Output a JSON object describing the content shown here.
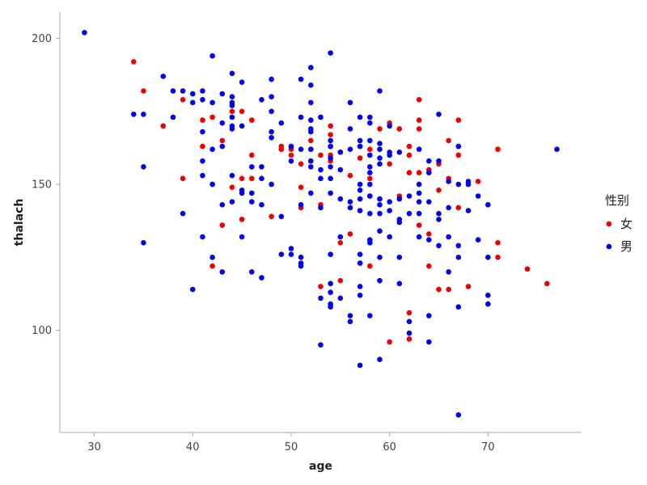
{
  "chart_data": {
    "type": "scatter",
    "title": "",
    "xlabel": "age",
    "ylabel": "thalach",
    "xlim": [
      26.5,
      79.5
    ],
    "ylim": [
      65,
      209
    ],
    "xticks": [
      30,
      40,
      50,
      60,
      70
    ],
    "yticks": [
      100,
      150,
      200
    ],
    "grid": false,
    "legend": {
      "title": "性别",
      "placement": "right"
    },
    "series": [
      {
        "name": "女",
        "color": "#ee0000",
        "points": [
          [
            34,
            192
          ],
          [
            35,
            182
          ],
          [
            37,
            170
          ],
          [
            39,
            179
          ],
          [
            39,
            152
          ],
          [
            41,
            172
          ],
          [
            41,
            163
          ],
          [
            42,
            173
          ],
          [
            42,
            122
          ],
          [
            43,
            165
          ],
          [
            43,
            136
          ],
          [
            44,
            175
          ],
          [
            44,
            149
          ],
          [
            45,
            175
          ],
          [
            45,
            152
          ],
          [
            45,
            138
          ],
          [
            46,
            160
          ],
          [
            46,
            172
          ],
          [
            46,
            152
          ],
          [
            48,
            139
          ],
          [
            49,
            163
          ],
          [
            49,
            162
          ],
          [
            50,
            162
          ],
          [
            50,
            160
          ],
          [
            51,
            157
          ],
          [
            51,
            149
          ],
          [
            51,
            142
          ],
          [
            52,
            165
          ],
          [
            52,
            162
          ],
          [
            52,
            158
          ],
          [
            53,
            160
          ],
          [
            53,
            143
          ],
          [
            53,
            115
          ],
          [
            54,
            170
          ],
          [
            54,
            167
          ],
          [
            54,
            163
          ],
          [
            54,
            160
          ],
          [
            54,
            158
          ],
          [
            55,
            161
          ],
          [
            55,
            130
          ],
          [
            55,
            117
          ],
          [
            56,
            153
          ],
          [
            56,
            133
          ],
          [
            57,
            159
          ],
          [
            57,
            163
          ],
          [
            58,
            162
          ],
          [
            58,
            152
          ],
          [
            58,
            146
          ],
          [
            58,
            122
          ],
          [
            59,
            169
          ],
          [
            60,
            171
          ],
          [
            60,
            157
          ],
          [
            60,
            96
          ],
          [
            61,
            169
          ],
          [
            61,
            146
          ],
          [
            62,
            163
          ],
          [
            62,
            160
          ],
          [
            62,
            154
          ],
          [
            62,
            106
          ],
          [
            62,
            97
          ],
          [
            63,
            179
          ],
          [
            63,
            172
          ],
          [
            63,
            169
          ],
          [
            63,
            154
          ],
          [
            63,
            136
          ],
          [
            64,
            155
          ],
          [
            64,
            133
          ],
          [
            64,
            122
          ],
          [
            65,
            157
          ],
          [
            65,
            148
          ],
          [
            65,
            114
          ],
          [
            66,
            165
          ],
          [
            66,
            152
          ],
          [
            66,
            114
          ],
          [
            67,
            172
          ],
          [
            67,
            160
          ],
          [
            67,
            142
          ],
          [
            68,
            115
          ],
          [
            69,
            151
          ],
          [
            71,
            162
          ],
          [
            71,
            130
          ],
          [
            71,
            125
          ],
          [
            74,
            121
          ],
          [
            76,
            116
          ]
        ]
      },
      {
        "name": "男",
        "color": "#0000ee",
        "points": [
          [
            29,
            202
          ],
          [
            34,
            174
          ],
          [
            35,
            174
          ],
          [
            35,
            156
          ],
          [
            35,
            130
          ],
          [
            37,
            187
          ],
          [
            38,
            182
          ],
          [
            38,
            173
          ],
          [
            39,
            182
          ],
          [
            39,
            140
          ],
          [
            40,
            181
          ],
          [
            40,
            178
          ],
          [
            40,
            114
          ],
          [
            41,
            182
          ],
          [
            41,
            179
          ],
          [
            41,
            168
          ],
          [
            41,
            158
          ],
          [
            41,
            153
          ],
          [
            41,
            132
          ],
          [
            42,
            194
          ],
          [
            42,
            178
          ],
          [
            42,
            162
          ],
          [
            42,
            150
          ],
          [
            42,
            125
          ],
          [
            43,
            181
          ],
          [
            43,
            171
          ],
          [
            43,
            163
          ],
          [
            43,
            143
          ],
          [
            43,
            120
          ],
          [
            44,
            188
          ],
          [
            44,
            180
          ],
          [
            44,
            178
          ],
          [
            44,
            177
          ],
          [
            44,
            173
          ],
          [
            44,
            170
          ],
          [
            44,
            169
          ],
          [
            44,
            153
          ],
          [
            44,
            144
          ],
          [
            45,
            185
          ],
          [
            45,
            170
          ],
          [
            45,
            148
          ],
          [
            45,
            147
          ],
          [
            45,
            132
          ],
          [
            46,
            156
          ],
          [
            46,
            147
          ],
          [
            46,
            144
          ],
          [
            46,
            120
          ],
          [
            47,
            179
          ],
          [
            47,
            156
          ],
          [
            47,
            152
          ],
          [
            47,
            143
          ],
          [
            47,
            118
          ],
          [
            48,
            186
          ],
          [
            48,
            180
          ],
          [
            48,
            175
          ],
          [
            48,
            168
          ],
          [
            48,
            166
          ],
          [
            48,
            150
          ],
          [
            49,
            171
          ],
          [
            49,
            139
          ],
          [
            49,
            126
          ],
          [
            50,
            163
          ],
          [
            50,
            158
          ],
          [
            50,
            128
          ],
          [
            50,
            126
          ],
          [
            51,
            186
          ],
          [
            51,
            173
          ],
          [
            51,
            162
          ],
          [
            51,
            143
          ],
          [
            51,
            125
          ],
          [
            51,
            123
          ],
          [
            51,
            122
          ],
          [
            52,
            190
          ],
          [
            52,
            184
          ],
          [
            52,
            178
          ],
          [
            52,
            172
          ],
          [
            52,
            169
          ],
          [
            52,
            168
          ],
          [
            52,
            162
          ],
          [
            52,
            158
          ],
          [
            52,
            156
          ],
          [
            52,
            147
          ],
          [
            53,
            173
          ],
          [
            53,
            155
          ],
          [
            53,
            152
          ],
          [
            53,
            142
          ],
          [
            53,
            111
          ],
          [
            53,
            95
          ],
          [
            54,
            195
          ],
          [
            54,
            165
          ],
          [
            54,
            163
          ],
          [
            54,
            159
          ],
          [
            54,
            156
          ],
          [
            54,
            152
          ],
          [
            54,
            147
          ],
          [
            54,
            126
          ],
          [
            54,
            116
          ],
          [
            54,
            113
          ],
          [
            54,
            109
          ],
          [
            54,
            108
          ],
          [
            55,
            161
          ],
          [
            55,
            155
          ],
          [
            55,
            145
          ],
          [
            55,
            132
          ],
          [
            55,
            111
          ],
          [
            56,
            178
          ],
          [
            56,
            169
          ],
          [
            56,
            162
          ],
          [
            56,
            144
          ],
          [
            56,
            142
          ],
          [
            56,
            105
          ],
          [
            56,
            103
          ],
          [
            57,
            173
          ],
          [
            57,
            165
          ],
          [
            57,
            163
          ],
          [
            57,
            150
          ],
          [
            57,
            148
          ],
          [
            57,
            145
          ],
          [
            57,
            141
          ],
          [
            57,
            126
          ],
          [
            57,
            123
          ],
          [
            57,
            115
          ],
          [
            57,
            112
          ],
          [
            57,
            88
          ],
          [
            58,
            173
          ],
          [
            58,
            171
          ],
          [
            58,
            165
          ],
          [
            58,
            160
          ],
          [
            58,
            156
          ],
          [
            58,
            154
          ],
          [
            58,
            150
          ],
          [
            58,
            146
          ],
          [
            58,
            140
          ],
          [
            58,
            131
          ],
          [
            58,
            130
          ],
          [
            58,
            105
          ],
          [
            59,
            182
          ],
          [
            59,
            164
          ],
          [
            59,
            162
          ],
          [
            59,
            159
          ],
          [
            59,
            157
          ],
          [
            59,
            145
          ],
          [
            59,
            143
          ],
          [
            59,
            140
          ],
          [
            59,
            134
          ],
          [
            59,
            125
          ],
          [
            59,
            117
          ],
          [
            59,
            90
          ],
          [
            60,
            170
          ],
          [
            60,
            161
          ],
          [
            60,
            160
          ],
          [
            60,
            144
          ],
          [
            60,
            141
          ],
          [
            60,
            132
          ],
          [
            61,
            161
          ],
          [
            61,
            145
          ],
          [
            61,
            138
          ],
          [
            61,
            137
          ],
          [
            61,
            125
          ],
          [
            61,
            116
          ],
          [
            62,
            146
          ],
          [
            62,
            140
          ],
          [
            62,
            103
          ],
          [
            62,
            99
          ],
          [
            63,
            162
          ],
          [
            63,
            150
          ],
          [
            63,
            147
          ],
          [
            63,
            144
          ],
          [
            63,
            140
          ],
          [
            63,
            132
          ],
          [
            64,
            158
          ],
          [
            64,
            154
          ],
          [
            64,
            144
          ],
          [
            64,
            131
          ],
          [
            64,
            105
          ],
          [
            64,
            96
          ],
          [
            65,
            174
          ],
          [
            65,
            158
          ],
          [
            65,
            140
          ],
          [
            65,
            138
          ],
          [
            65,
            129
          ],
          [
            66,
            151
          ],
          [
            66,
            142
          ],
          [
            66,
            132
          ],
          [
            66,
            120
          ],
          [
            67,
            163
          ],
          [
            67,
            150
          ],
          [
            67,
            129
          ],
          [
            67,
            125
          ],
          [
            67,
            108
          ],
          [
            67,
            71
          ],
          [
            68,
            151
          ],
          [
            68,
            150
          ],
          [
            68,
            141
          ],
          [
            69,
            146
          ],
          [
            69,
            131
          ],
          [
            70,
            143
          ],
          [
            70,
            125
          ],
          [
            70,
            112
          ],
          [
            70,
            109
          ],
          [
            77,
            162
          ]
        ]
      }
    ]
  }
}
